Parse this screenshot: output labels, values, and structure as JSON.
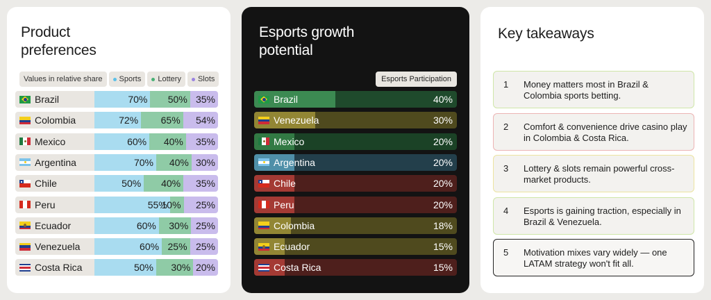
{
  "colors": {
    "sports": "#a9dcf0",
    "lottery": "#8fcba6",
    "slots": "#c9bcec",
    "sports_dot": "#5cc0e8",
    "lottery_dot": "#48b074",
    "slots_dot": "#9a83e0"
  },
  "product_card": {
    "title": "Product\npreferences",
    "legend": {
      "note": "Values in relative share",
      "sports": "Sports",
      "lottery": "Lottery",
      "slots": "Slots"
    }
  },
  "esports_card": {
    "title": "Esports growth\npotential",
    "header": "Esports Participation"
  },
  "takeaways_card": {
    "title": "Key takeaways",
    "items": [
      {
        "num": "1",
        "text": "Money matters most in Brazil & Colombia sports betting.",
        "border": "#cfe6a8"
      },
      {
        "num": "2",
        "text": "Comfort & convenience drive casino play in Colombia & Costa Rica.",
        "border": "#ecb4b4"
      },
      {
        "num": "3",
        "text": "Lottery & slots remain powerful cross-market products.",
        "border": "#ece4a0"
      },
      {
        "num": "4",
        "text": "Esports is gaining traction, especially in Brazil & Venezuela.",
        "border": "#cfe6a8"
      },
      {
        "num": "5",
        "text": "Motivation mixes vary widely — one LATAM strategy won't fit all.",
        "border": "#222222"
      }
    ]
  },
  "chart_data": [
    {
      "type": "bar",
      "title": "Product preferences",
      "categories": [
        "Brazil",
        "Colombia",
        "Mexico",
        "Argentina",
        "Chile",
        "Peru",
        "Ecuador",
        "Venezuela",
        "Costa Rica"
      ],
      "flags": [
        "flag-brazil-icon",
        "flag-colombia-icon",
        "flag-mexico-icon",
        "flag-argentina-icon",
        "flag-chile-icon",
        "flag-peru-icon",
        "flag-ecuador-icon",
        "flag-venezuela-icon",
        "flag-costa-rica-icon"
      ],
      "series": [
        {
          "name": "Sports",
          "values": [
            70,
            72,
            60,
            70,
            50,
            55,
            60,
            60,
            50
          ],
          "labels": [
            "70%",
            "72%",
            "60%",
            "70%",
            "50%",
            "55%",
            "60%",
            "60%",
            "50%"
          ]
        },
        {
          "name": "Lottery",
          "values": [
            50,
            65,
            40,
            40,
            40,
            10,
            30,
            25,
            30
          ],
          "labels": [
            "50%",
            "65%",
            "40%",
            "40%",
            "40%",
            "10%",
            "30%",
            "25%",
            "30%"
          ]
        },
        {
          "name": "Slots",
          "values": [
            35,
            54,
            35,
            30,
            35,
            25,
            25,
            25,
            20
          ],
          "labels": [
            "35%",
            "54%",
            "35%",
            "30%",
            "35%",
            "25%",
            "25%",
            "25%",
            "20%"
          ]
        }
      ],
      "legend": "top",
      "stacked": true
    },
    {
      "type": "bar",
      "title": "Esports growth potential",
      "categories": [
        "Brazil",
        "Venezuela",
        "Mexico",
        "Argentina",
        "Chile",
        "Peru",
        "Colombia",
        "Ecuador",
        "Costa Rica"
      ],
      "flags": [
        "flag-brazil-icon",
        "flag-venezuela-icon",
        "flag-mexico-icon",
        "flag-argentina-icon",
        "flag-chile-icon",
        "flag-peru-icon",
        "flag-colombia-icon",
        "flag-ecuador-icon",
        "flag-costa-rica-icon"
      ],
      "series": [
        {
          "name": "Esports Participation",
          "values": [
            40,
            30,
            20,
            20,
            20,
            20,
            18,
            15,
            15
          ],
          "labels": [
            "40%",
            "30%",
            "20%",
            "20%",
            "20%",
            "20%",
            "18%",
            "15%",
            "15%"
          ]
        }
      ],
      "bar_colors": [
        "#3c8a52",
        "#928634",
        "#327a44",
        "#4f8fa8",
        "#a43a34",
        "#a43a34",
        "#928634",
        "#928634",
        "#a43a34"
      ],
      "track_colors": [
        "#1f4a2c",
        "#4f4a1e",
        "#1b4226",
        "#233f4b",
        "#4e1f1c",
        "#4e1f1c",
        "#4f4a1e",
        "#4f4a1e",
        "#4e1f1c"
      ],
      "xlim": [
        0,
        100
      ]
    }
  ]
}
